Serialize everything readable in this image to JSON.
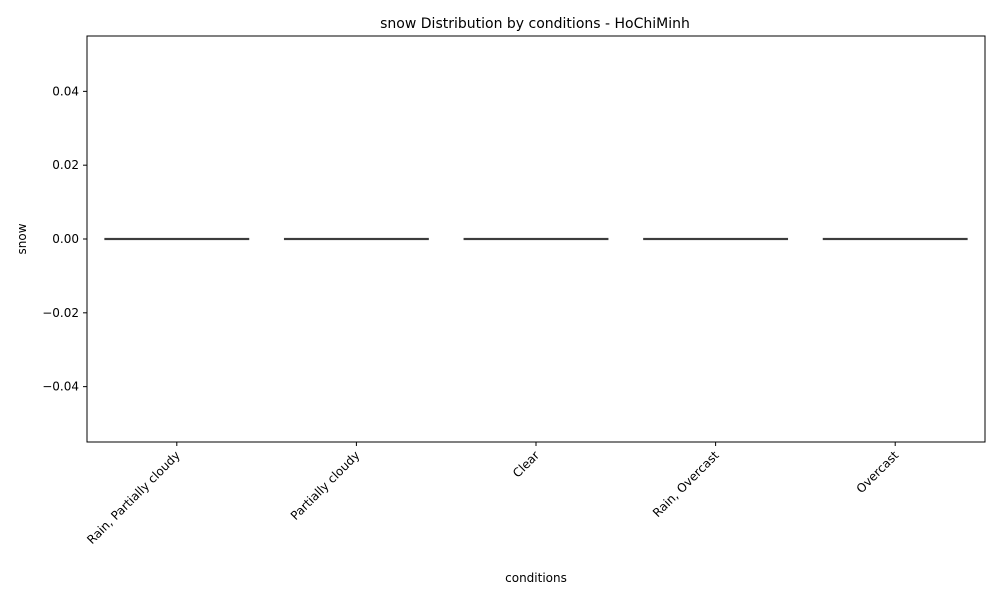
{
  "chart_data": {
    "type": "box",
    "title": "snow Distribution by conditions - HoChiMinh",
    "xlabel": "conditions",
    "ylabel": "snow",
    "categories": [
      "Rain, Partially cloudy",
      "Partially cloudy",
      "Clear",
      "Rain, Overcast",
      "Overcast"
    ],
    "boxes": [
      {
        "category": "Rain, Partially cloudy",
        "min": 0,
        "q1": 0,
        "median": 0,
        "q3": 0,
        "max": 0
      },
      {
        "category": "Partially cloudy",
        "min": 0,
        "q1": 0,
        "median": 0,
        "q3": 0,
        "max": 0
      },
      {
        "category": "Clear",
        "min": 0,
        "q1": 0,
        "median": 0,
        "q3": 0,
        "max": 0
      },
      {
        "category": "Rain, Overcast",
        "min": 0,
        "q1": 0,
        "median": 0,
        "q3": 0,
        "max": 0
      },
      {
        "category": "Overcast",
        "min": 0,
        "q1": 0,
        "median": 0,
        "q3": 0,
        "max": 0
      }
    ],
    "ylim": [
      -0.055,
      0.055
    ],
    "yticks": [
      -0.04,
      -0.02,
      0.0,
      0.02,
      0.04
    ],
    "ytick_labels": [
      "−0.04",
      "−0.02",
      "0.00",
      "0.02",
      "0.04"
    ],
    "grid": false,
    "box_color": "#3d3d3d"
  }
}
